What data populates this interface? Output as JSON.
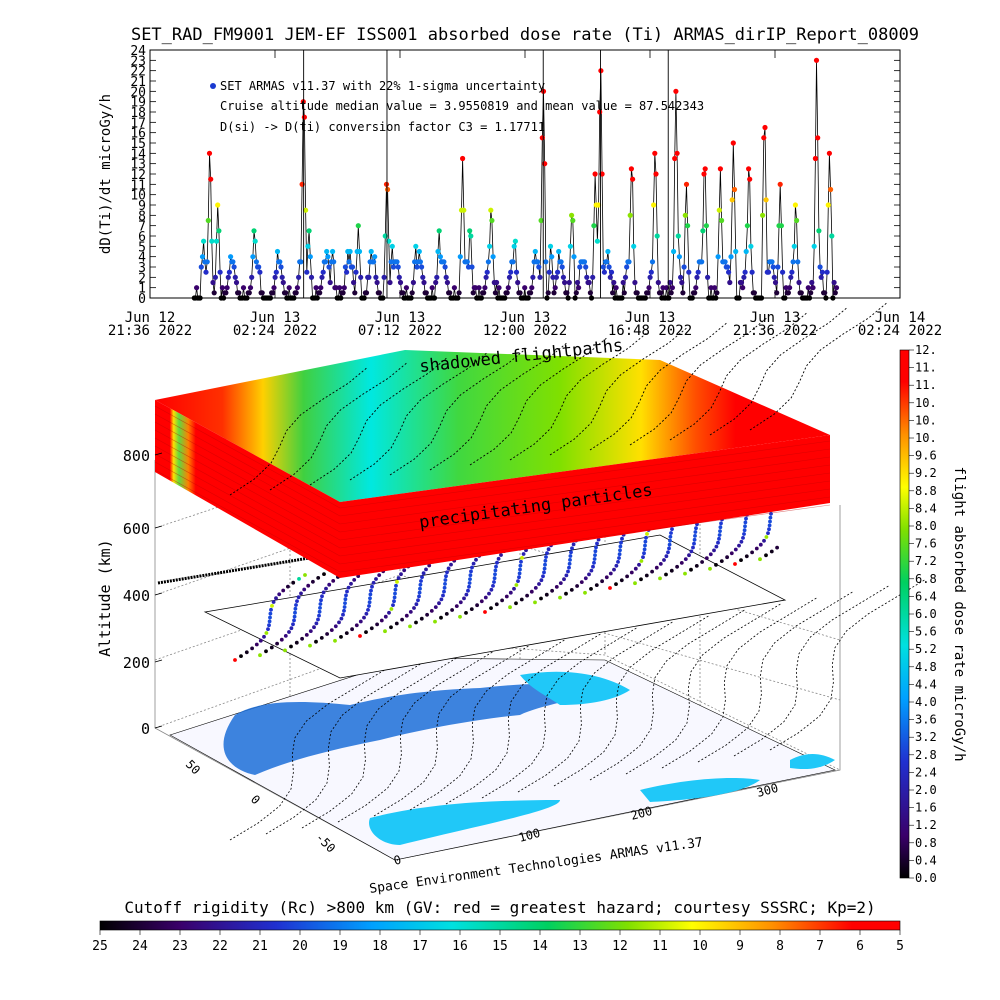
{
  "title": "SET_RAD_FM9001  JEM-EF ISS001 absorbed dose rate (Ti) ARMAS_dirIP_Report_08009",
  "chart_data": [
    {
      "type": "scatter",
      "ylabel": "dD(Ti)/dt microGy/h",
      "ylim": [
        0,
        24
      ],
      "yticks": [
        "0",
        "1",
        "2",
        "3",
        "4",
        "5",
        "6",
        "7",
        "8",
        "9",
        "10",
        "11",
        "12",
        "13",
        "14",
        "15",
        "16",
        "17",
        "18",
        "19",
        "20",
        "21",
        "22",
        "23",
        "24"
      ],
      "xticks": [
        {
          "date": "Jun 12",
          "time": "21:36 2022"
        },
        {
          "date": "Jun 13",
          "time": "02:24 2022"
        },
        {
          "date": "Jun 13",
          "time": "07:12 2022"
        },
        {
          "date": "Jun 13",
          "time": "12:00 2022"
        },
        {
          "date": "Jun 13",
          "time": "16:48 2022"
        },
        {
          "date": "Jun 13",
          "time": "21:36 2022"
        },
        {
          "date": "Jun 14",
          "time": "02:24 2022"
        }
      ],
      "xrange_hours": [
        0,
        28.8
      ],
      "legend": {
        "placement": "top-left",
        "lines": [
          "SET ARMAS v11.37 with 22% 1-sigma uncertainty",
          "Cruise altitude median value = 3.9550819 and mean value = 87.542343",
          "D(si) -> D(ti) conversion factor C3 = 1.17711"
        ]
      },
      "series_color_scale": "dose rate",
      "peaks": [
        {
          "t": 2.05,
          "v": 6
        },
        {
          "t": 2.3,
          "v": 15
        },
        {
          "t": 2.6,
          "v": 9
        },
        {
          "t": 3.1,
          "v": 4
        },
        {
          "t": 4.0,
          "v": 7
        },
        {
          "t": 5.0,
          "v": 3
        },
        {
          "t": 5.9,
          "v": 22
        },
        {
          "t": 6.1,
          "v": 7
        },
        {
          "t": 7.0,
          "v": 5
        },
        {
          "t": 8.0,
          "v": 7
        },
        {
          "t": 9.1,
          "v": 13
        },
        {
          "t": 9.3,
          "v": 5
        },
        {
          "t": 10.2,
          "v": 5
        },
        {
          "t": 11.1,
          "v": 7
        },
        {
          "t": 12.0,
          "v": 13
        },
        {
          "t": 12.3,
          "v": 7
        },
        {
          "t": 13.1,
          "v": 10
        },
        {
          "t": 14.0,
          "v": 6
        },
        {
          "t": 15.1,
          "v": 22
        },
        {
          "t": 15.4,
          "v": 5
        },
        {
          "t": 16.2,
          "v": 9
        },
        {
          "t": 17.1,
          "v": 13
        },
        {
          "t": 17.3,
          "v": 24
        },
        {
          "t": 18.5,
          "v": 14
        },
        {
          "t": 19.4,
          "v": 16
        },
        {
          "t": 20.2,
          "v": 21
        },
        {
          "t": 20.6,
          "v": 11
        },
        {
          "t": 21.3,
          "v": 15
        },
        {
          "t": 21.9,
          "v": 13
        },
        {
          "t": 22.4,
          "v": 15
        },
        {
          "t": 23.0,
          "v": 14
        },
        {
          "t": 23.6,
          "v": 19
        },
        {
          "t": 24.2,
          "v": 11
        },
        {
          "t": 24.8,
          "v": 10
        },
        {
          "t": 25.6,
          "v": 23
        },
        {
          "t": 26.1,
          "v": 15
        }
      ]
    },
    {
      "type": "3d-surface",
      "zlabel": "Altitude (km)",
      "zticks": [
        "0",
        "200",
        "400",
        "600",
        "800"
      ],
      "lat_ticks": [
        "50",
        "0",
        "-50"
      ],
      "lon_ticks": [
        "0",
        "100",
        "200",
        "300"
      ],
      "annotations": [
        "shadowed flightpaths",
        "precipitating particles"
      ],
      "footer": "Space Environment Technologies ARMAS v11.37",
      "colorbar": {
        "label": "flight absorbed dose rate microGy/h",
        "ticks": [
          "0.0",
          "0.4",
          "0.8",
          "1.2",
          "1.6",
          "2.0",
          "2.4",
          "2.8",
          "3.2",
          "3.6",
          "4.0",
          "4.4",
          "4.8",
          "5.2",
          "5.6",
          "6.0",
          "6.4",
          "6.8",
          "7.2",
          "7.6",
          "8.0",
          "8.4",
          "8.8",
          "9.2",
          "9.6",
          "10.",
          "10.",
          "10.",
          "11.",
          "11.",
          "12."
        ],
        "range": [
          0,
          12
        ]
      }
    }
  ],
  "bottom_colorbar": {
    "label": "Cutoff rigidity (Rc) >800 km (GV: red = greatest hazard; courtesy SSSRC; Kp=2)",
    "ticks": [
      "25",
      "24",
      "23",
      "22",
      "21",
      "20",
      "19",
      "18",
      "17",
      "16",
      "15",
      "14",
      "13",
      "12",
      "11",
      "10",
      "9",
      "8",
      "7",
      "6",
      "5"
    ]
  },
  "colors": {
    "rainbow": [
      "#000000",
      "#3a006a",
      "#2030d0",
      "#00a0ff",
      "#00e0e0",
      "#00d060",
      "#80e000",
      "#ffff00",
      "#ff9000",
      "#ff0000"
    ]
  }
}
